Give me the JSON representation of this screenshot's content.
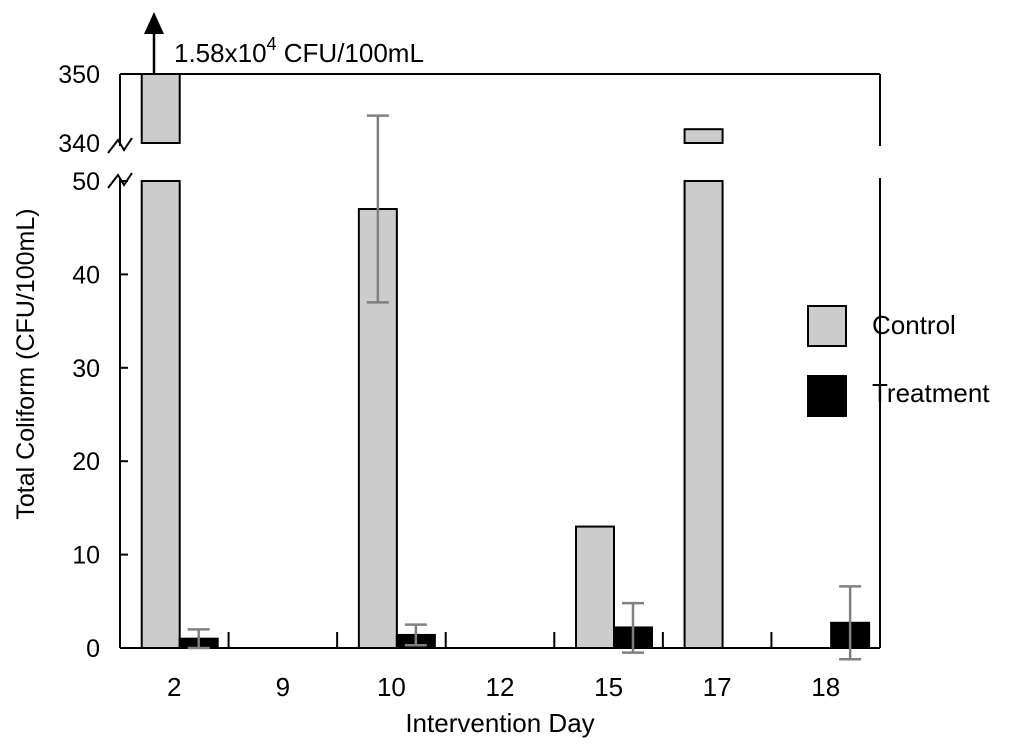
{
  "chart_data": {
    "type": "bar",
    "title": "",
    "xlabel": "Intervention Day",
    "ylabel": "Total Coliform (CFU/100mL)",
    "categories": [
      "2",
      "9",
      "10",
      "12",
      "15",
      "17",
      "18"
    ],
    "y_ticks": [
      "0",
      "10",
      "20",
      "30",
      "40",
      "50"
    ],
    "upper_ticks": [
      "340",
      "350"
    ],
    "ylim": [
      0,
      50
    ],
    "upper_ylim": [
      340,
      350
    ],
    "axis_break": true,
    "series": [
      {
        "name": "Control",
        "color": "#cccccc",
        "values": [
          15800,
          null,
          47,
          null,
          13,
          342,
          null
        ],
        "error_low": [
          null,
          null,
          37,
          null,
          null,
          null,
          null
        ],
        "error_high": [
          null,
          null,
          57,
          null,
          null,
          null,
          null
        ]
      },
      {
        "name": "Treatment",
        "color": "#000000",
        "values": [
          1,
          null,
          1.4,
          null,
          2.2,
          null,
          2.7
        ],
        "error_low": [
          0,
          null,
          0.3,
          null,
          -0.5,
          null,
          -1.2
        ],
        "error_high": [
          2,
          null,
          2.5,
          null,
          4.8,
          null,
          6.6
        ]
      }
    ],
    "legend": [
      "Control",
      "Treatment"
    ],
    "legend_position": "right",
    "annotation": {
      "prefix": "1.58x10",
      "superscript": "4",
      "suffix": " CFU/100mL"
    }
  }
}
